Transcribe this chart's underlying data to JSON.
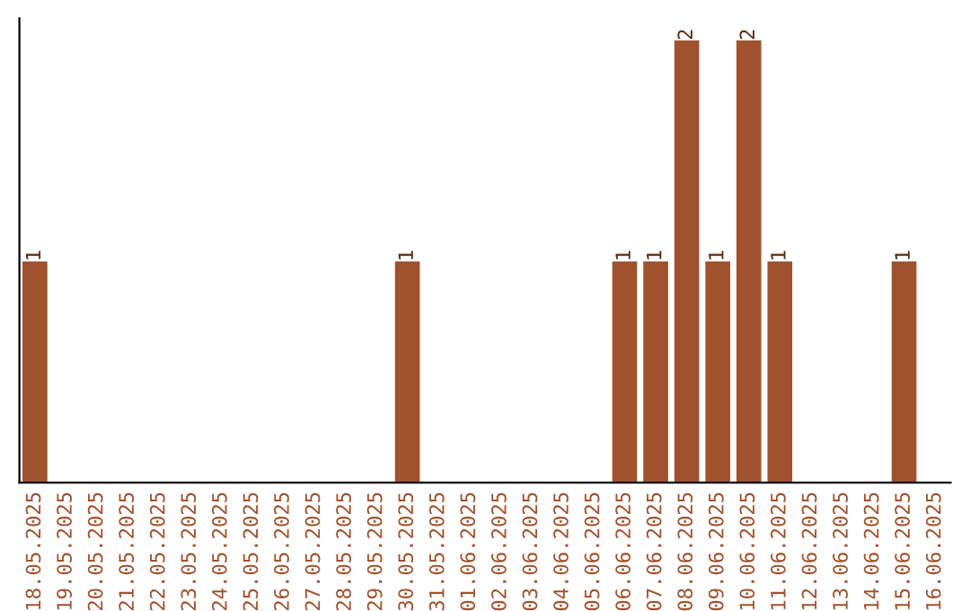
{
  "chart_data": {
    "type": "bar",
    "categories": [
      "18.05.2025",
      "19.05.2025",
      "20.05.2025",
      "21.05.2025",
      "22.05.2025",
      "23.05.2025",
      "24.05.2025",
      "25.05.2025",
      "26.05.2025",
      "27.05.2025",
      "28.05.2025",
      "29.05.2025",
      "30.05.2025",
      "31.05.2025",
      "01.06.2025",
      "02.06.2025",
      "03.06.2025",
      "04.06.2025",
      "05.06.2025",
      "06.06.2025",
      "07.06.2025",
      "08.06.2025",
      "09.06.2025",
      "10.06.2025",
      "11.06.2025",
      "12.06.2025",
      "13.06.2025",
      "14.06.2025",
      "15.06.2025",
      "16.06.2025"
    ],
    "values": [
      1,
      0,
      0,
      0,
      0,
      0,
      0,
      0,
      0,
      0,
      0,
      0,
      1,
      0,
      0,
      0,
      0,
      0,
      0,
      1,
      1,
      2,
      1,
      2,
      1,
      0,
      0,
      0,
      1,
      0
    ],
    "value_labels": [
      "1",
      null,
      null,
      null,
      null,
      null,
      null,
      null,
      null,
      null,
      null,
      null,
      "1",
      null,
      null,
      null,
      null,
      null,
      null,
      "1",
      "1",
      "2",
      "1",
      "2",
      "1",
      null,
      null,
      null,
      "1",
      null
    ],
    "color": "#a0522d",
    "tick_labels": "x",
    "grid": false,
    "legend": false
  }
}
